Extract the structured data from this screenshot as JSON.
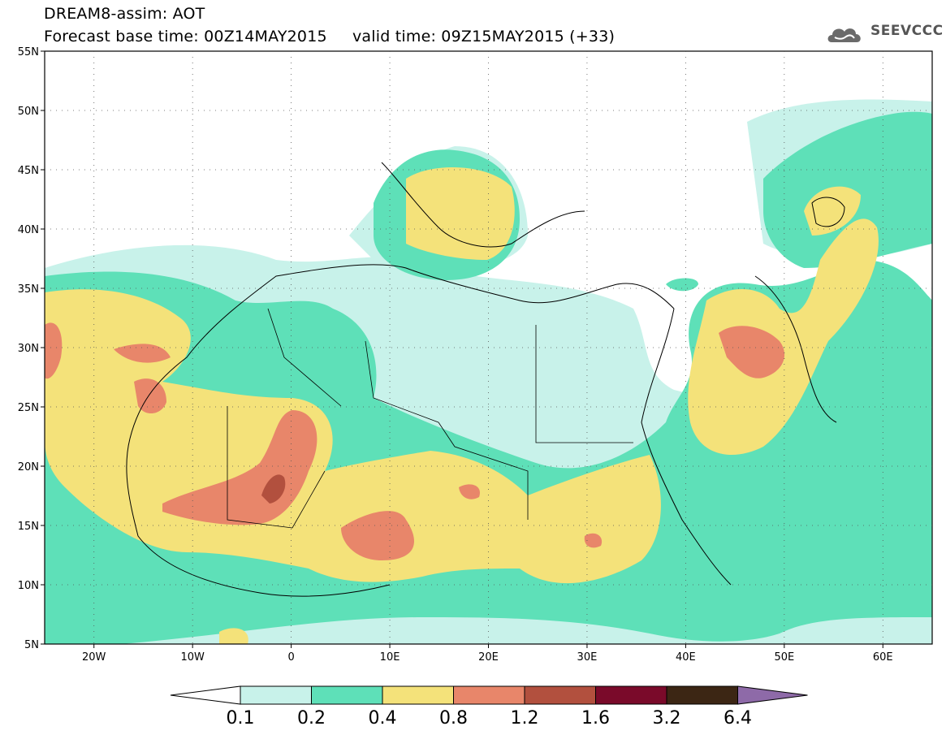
{
  "title": {
    "line1": "DREAM8-assim: AOT",
    "base_label": "Forecast base time: 00Z14MAY2015",
    "valid_label": "valid time: 09Z15MAY2015 (+33)"
  },
  "logo": {
    "text": "SEEVCCC",
    "icon": "cloud-icon"
  },
  "map": {
    "lat_labels": [
      "55N",
      "50N",
      "45N",
      "40N",
      "35N",
      "30N",
      "25N",
      "20N",
      "15N",
      "10N",
      "5N"
    ],
    "lat_values": [
      55,
      50,
      45,
      40,
      35,
      30,
      25,
      20,
      15,
      10,
      5
    ],
    "lon_labels": [
      "20W",
      "10W",
      "0",
      "10E",
      "20E",
      "30E",
      "40E",
      "50E",
      "60E"
    ],
    "lon_values": [
      -20,
      -10,
      0,
      10,
      20,
      30,
      40,
      50,
      60
    ],
    "extent": {
      "lon_min": -25,
      "lon_max": 65,
      "lat_min": 5,
      "lat_max": 55
    }
  },
  "colorbar": {
    "labels": [
      "0.1",
      "0.2",
      "0.4",
      "0.8",
      "1.2",
      "1.6",
      "3.2",
      "6.4"
    ],
    "colors": [
      "#ffffff",
      "#c8f2ea",
      "#5ee0b8",
      "#f4e27a",
      "#e8866a",
      "#b2503e",
      "#7a0a2a",
      "#3c2614",
      "#8e6aa8"
    ]
  },
  "palette": {
    "c1": "#c8f2ea",
    "c2": "#5ee0b8",
    "c3": "#f4e27a",
    "c4": "#e8866a",
    "c5": "#b2503e"
  }
}
